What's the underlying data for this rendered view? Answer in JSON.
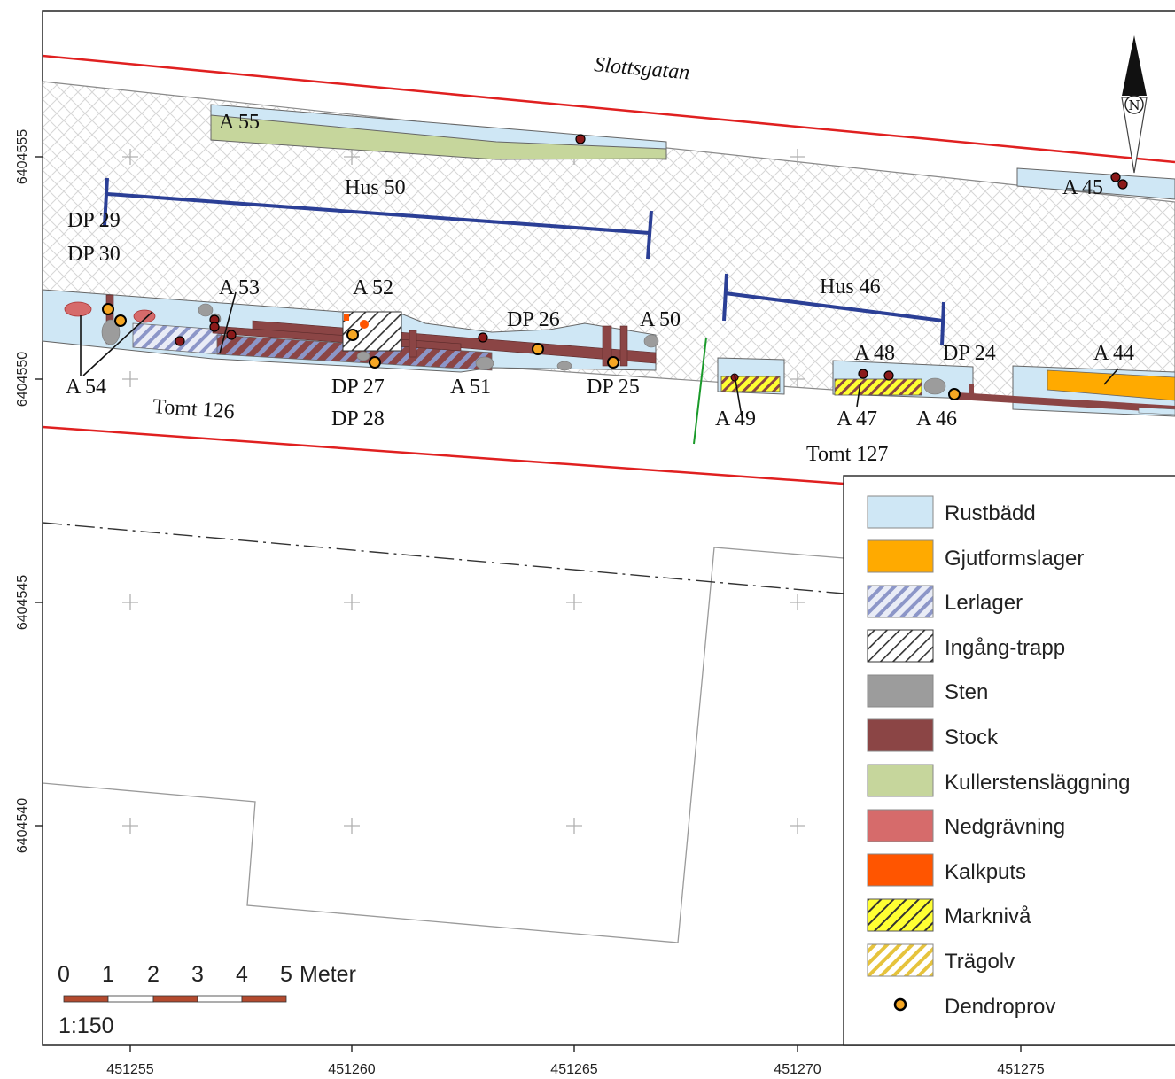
{
  "map": {
    "street_label": "Slottsgatan",
    "north_label": "N",
    "plot_labels": {
      "tomt_126": "Tomt 126",
      "tomt_127": "Tomt 127"
    },
    "house_labels": {
      "hus_50": "Hus 50",
      "hus_46": "Hus 46"
    },
    "feature_labels": {
      "a55": "A 55",
      "a45": "A 45",
      "a53": "A 53",
      "a52": "A 52",
      "a50": "A 50",
      "a54": "A 54",
      "a51": "A 51",
      "a49": "A 49",
      "a48": "A 48",
      "a47": "A 47",
      "a46": "A 46",
      "a44": "A 44"
    },
    "sample_labels": {
      "dp29": "DP 29",
      "dp30": "DP 30",
      "dp26": "DP 26",
      "dp27": "DP 27",
      "dp28": "DP 28",
      "dp25": "DP 25",
      "dp24": "DP 24"
    }
  },
  "axes": {
    "x_ticks": [
      "451255",
      "451260",
      "451265",
      "451270",
      "451275"
    ],
    "y_ticks": [
      "6404555",
      "6404550",
      "6404545",
      "6404540"
    ]
  },
  "scalebar": {
    "ticks": [
      "0",
      "1",
      "2",
      "3",
      "4",
      "5"
    ],
    "unit": "Meter",
    "ratio": "1:150"
  },
  "legend": {
    "items": [
      {
        "label": "Rustbädd",
        "swatch": "rustbadd",
        "color": "#cfe7f5"
      },
      {
        "label": "Gjutformslager",
        "swatch": "gjutform",
        "color": "#ffaa00"
      },
      {
        "label": "Lerlager",
        "swatch": "lerlager",
        "color": "#8c96c8"
      },
      {
        "label": "Ingång-trapp",
        "swatch": "ingang",
        "color": "#333333"
      },
      {
        "label": "Sten",
        "swatch": "sten",
        "color": "#9c9c9c"
      },
      {
        "label": "Stock",
        "swatch": "stock",
        "color": "#8b4545"
      },
      {
        "label": "Kullerstensläggning",
        "swatch": "kuller",
        "color": "#c6d69c"
      },
      {
        "label": "Nedgrävning",
        "swatch": "nedgrav",
        "color": "#d66b6b"
      },
      {
        "label": "Kalkputs",
        "swatch": "kalkputs",
        "color": "#ff5500"
      },
      {
        "label": "Marknivå",
        "swatch": "markniva",
        "color": "#ffff33"
      },
      {
        "label": "Trägolv",
        "swatch": "tragolv",
        "color": "#e6c33c"
      },
      {
        "label": "Dendroprov",
        "swatch": "dendro",
        "color": "#f5a623"
      }
    ]
  }
}
